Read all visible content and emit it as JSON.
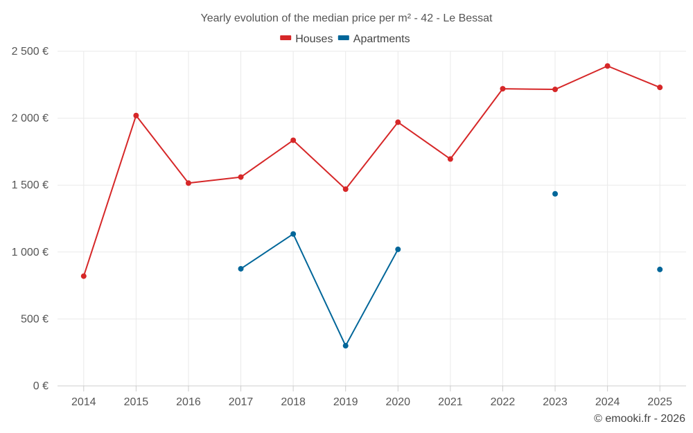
{
  "chart_data": {
    "type": "line",
    "title": "Yearly evolution of the median price per m² - 42 - Le Bessat",
    "categories": [
      "2014",
      "2015",
      "2016",
      "2017",
      "2018",
      "2019",
      "2020",
      "2021",
      "2022",
      "2023",
      "2024",
      "2025"
    ],
    "ylim": [
      0,
      2500
    ],
    "yticks": [
      0,
      500,
      1000,
      1500,
      2000,
      2500
    ],
    "ytick_labels": [
      "0 €",
      "500 €",
      "1 000 €",
      "1 500 €",
      "2 000 €",
      "2 500 €"
    ],
    "xlabel": "",
    "ylabel": "",
    "grid": true,
    "legend_position": "top-center",
    "series": [
      {
        "name": "Houses",
        "color": "#d62728",
        "values": [
          820,
          2020,
          1515,
          1560,
          1835,
          1470,
          1970,
          1695,
          2220,
          2215,
          2390,
          2230
        ]
      },
      {
        "name": "Apartments",
        "color": "#006699",
        "values": [
          null,
          null,
          null,
          875,
          1135,
          300,
          1020,
          null,
          null,
          1435,
          null,
          870
        ]
      }
    ]
  },
  "credit": "© emooki.fr - 2026"
}
